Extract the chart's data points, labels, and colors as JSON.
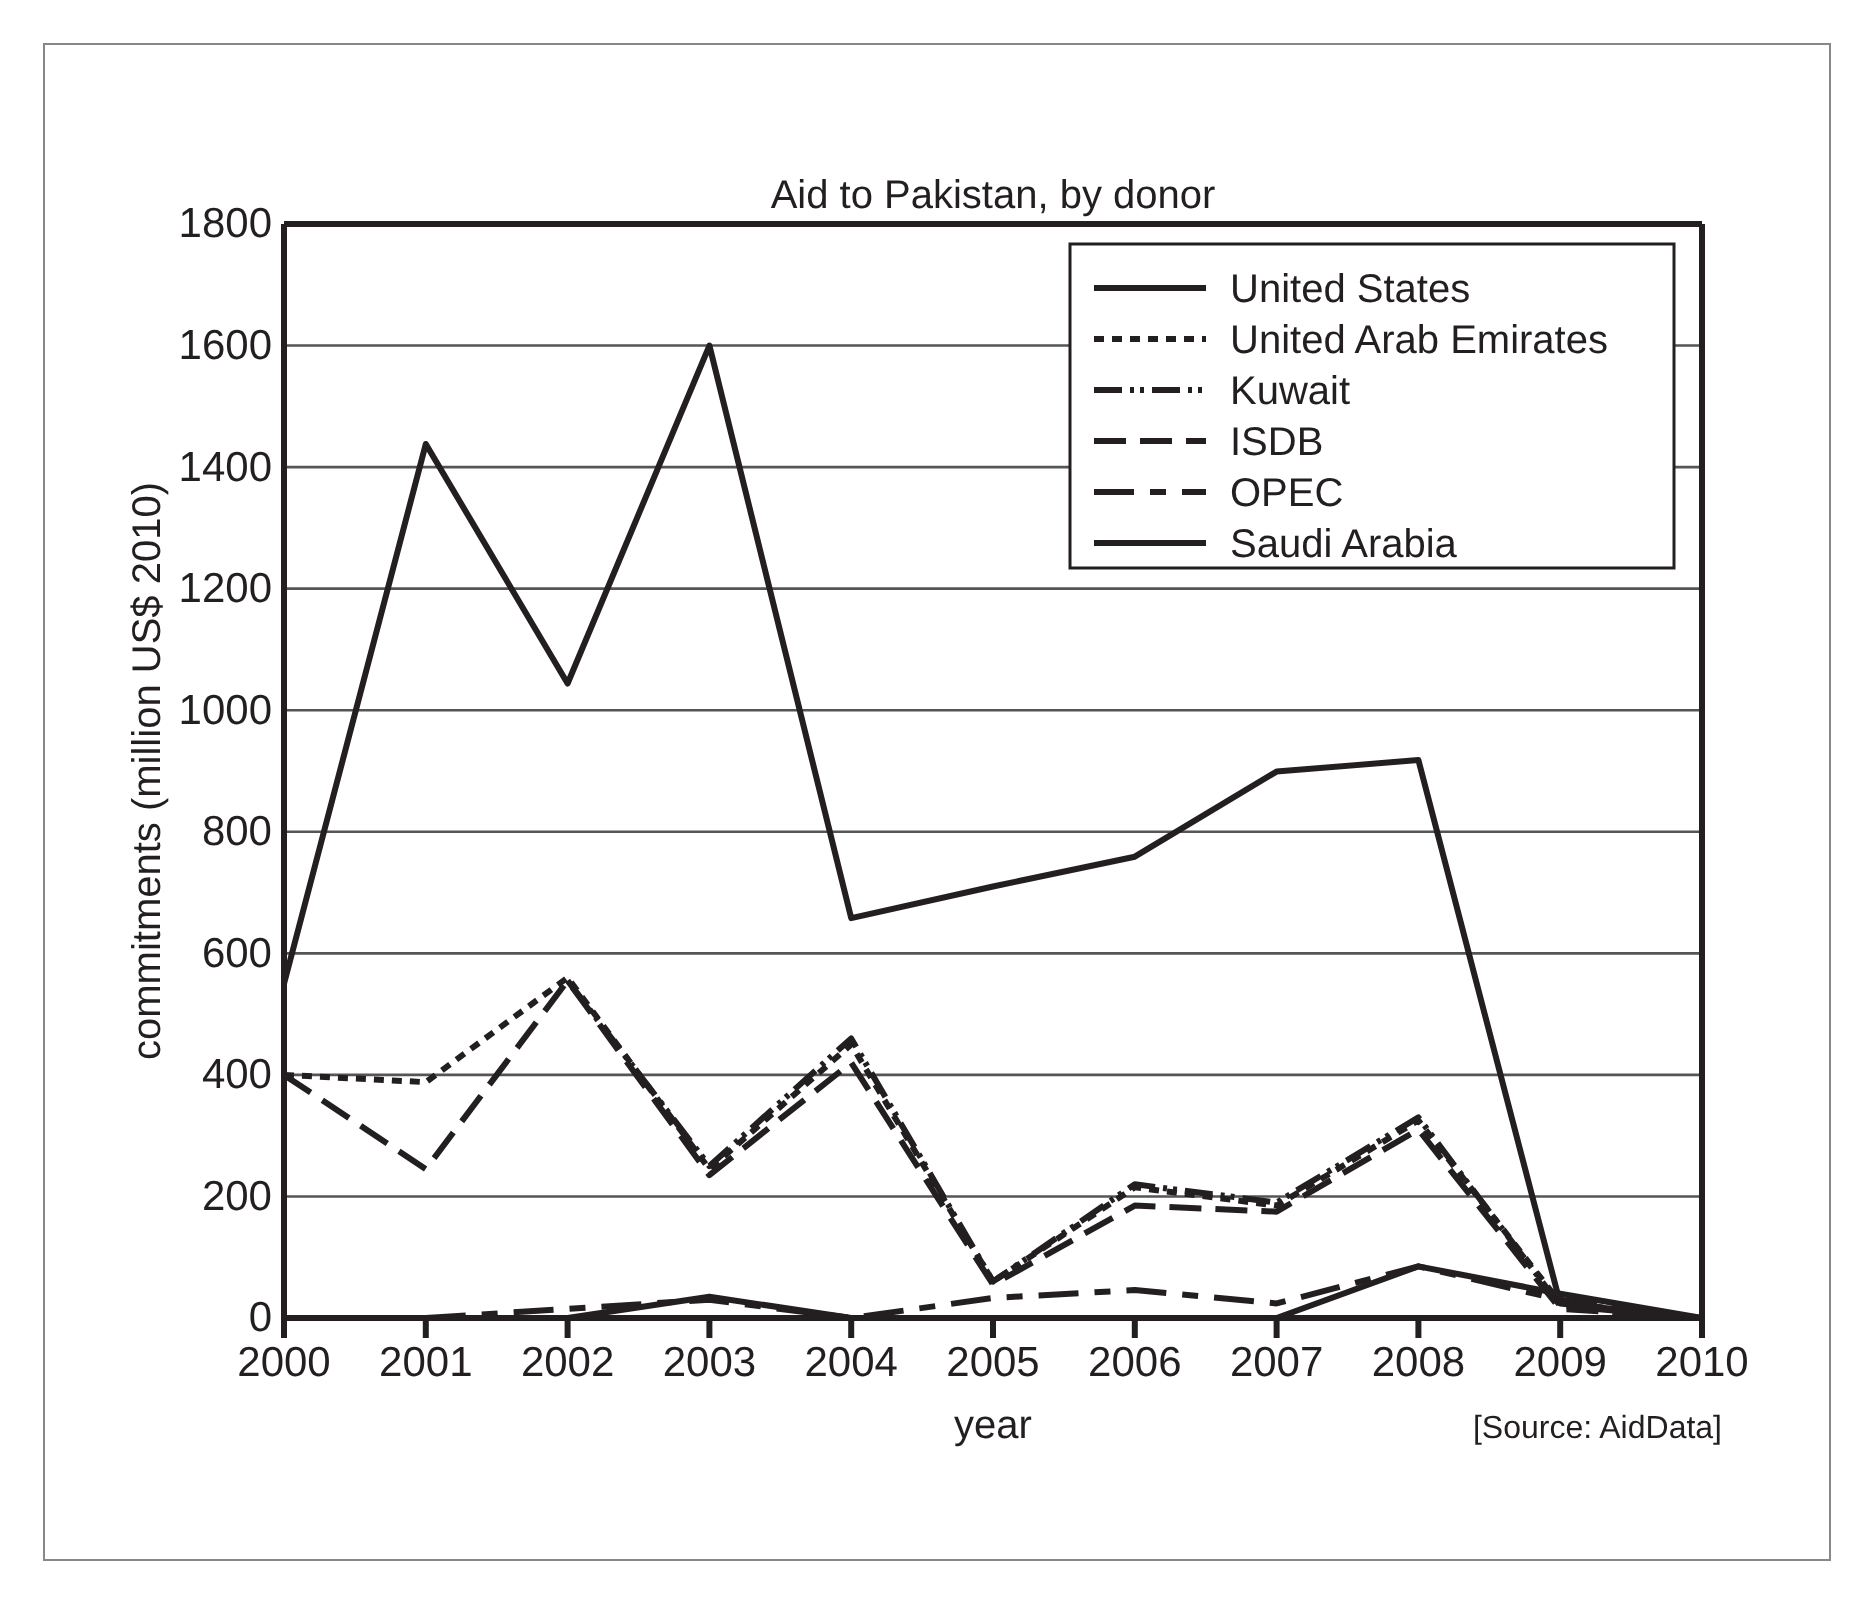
{
  "chart_data": {
    "type": "line",
    "title": "Aid to Pakistan, by donor",
    "xlabel": "year",
    "ylabel": "commitments (million US$ 2010)",
    "x": [
      2000,
      2001,
      2002,
      2003,
      2004,
      2005,
      2006,
      2007,
      2008,
      2009,
      2010
    ],
    "xlim": [
      2000,
      2010
    ],
    "xticks": [
      2000,
      2001,
      2002,
      2003,
      2004,
      2005,
      2006,
      2007,
      2008,
      2009,
      2010
    ],
    "ylim": [
      0,
      1800
    ],
    "yticks": [
      0,
      200,
      400,
      600,
      800,
      1000,
      1200,
      1400,
      1600,
      1800
    ],
    "grid": "y",
    "legend": "top right",
    "marker": "none",
    "series": [
      {
        "name": "United States",
        "color": "#231f20",
        "line_style": "solid",
        "values": [
          550,
          1438,
          1044,
          1600,
          658,
          710,
          759,
          899,
          918,
          24,
          0
        ]
      },
      {
        "name": "United Arab Emirates",
        "color": "#231f20",
        "line_style": "dotted",
        "values": [
          400,
          388,
          560,
          245,
          450,
          60,
          215,
          185,
          325,
          25,
          0
        ]
      },
      {
        "name": "Kuwait",
        "color": "#231f20",
        "line_style": "dashed",
        "values": [
          null,
          null,
          555,
          250,
          460,
          60,
          220,
          190,
          330,
          20,
          0
        ]
      },
      {
        "name": "ISDB",
        "color": "#231f20",
        "line_style": "dashed",
        "values": [
          400,
          245,
          555,
          235,
          420,
          55,
          185,
          175,
          310,
          15,
          0
        ]
      },
      {
        "name": "OPEC",
        "color": "#231f20",
        "line_style": "dashed",
        "values": [
          null,
          0,
          15,
          30,
          0,
          33,
          46,
          24,
          85,
          30,
          0
        ]
      },
      {
        "name": "Saudi Arabia",
        "color": "#231f20",
        "line_style": "solid",
        "values": [
          null,
          0,
          0,
          35,
          0,
          0,
          0,
          0,
          85,
          40,
          0
        ]
      }
    ],
    "annotations": [
      "[Source: AidData]"
    ]
  }
}
